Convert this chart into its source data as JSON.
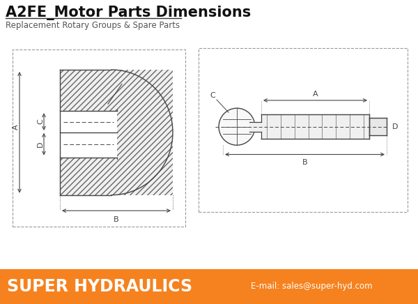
{
  "title": "A2FE_Motor Parts Dimensions",
  "subtitle": "Replacement Rotary Groups & Spare Parts",
  "footer_bg": "#F5821F",
  "footer_text": "SUPER HYDRAULICS",
  "footer_email": "E-mail: sales@super-hyd.com",
  "bg_color": "#FFFFFF",
  "border_color": "#999999",
  "line_color": "#444444",
  "title_fontsize": 15,
  "subtitle_fontsize": 8.5,
  "footer_fontsize": 17
}
